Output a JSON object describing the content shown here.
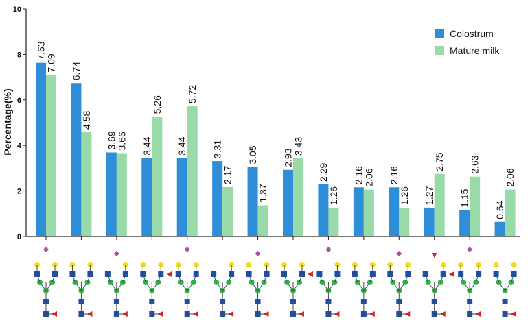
{
  "chart_data": {
    "type": "bar",
    "ylabel": "Percentage(%)",
    "ylim": [
      0,
      10
    ],
    "yticks": [
      "0",
      "2",
      "4",
      "6",
      "8",
      "10"
    ],
    "legend_position": "top-right",
    "series": [
      {
        "name": "Colostrum",
        "color": "#2e8fd8",
        "values": [
          7.63,
          6.74,
          3.69,
          3.44,
          3.44,
          3.31,
          3.05,
          2.93,
          2.29,
          2.16,
          2.16,
          1.27,
          1.15,
          0.64
        ],
        "labels": [
          "7.63",
          "6.74",
          "3.69",
          "3.44",
          "3.44",
          "3.31",
          "3.05",
          "2.93",
          "2.29",
          "2.16",
          "2.16",
          "1.27",
          "1.15",
          "0.64"
        ]
      },
      {
        "name": "Mature milk",
        "color": "#98dba9",
        "values": [
          7.09,
          4.58,
          3.66,
          5.26,
          5.72,
          2.17,
          1.37,
          3.43,
          1.26,
          2.06,
          1.26,
          2.75,
          2.63,
          2.06
        ],
        "labels": [
          "7.09",
          "4.58",
          "3.66",
          "5.26",
          "5.72",
          "2.17",
          "1.37",
          "3.43",
          "1.26",
          "2.06",
          "1.26",
          "2.75",
          "2.63",
          "2.06"
        ]
      }
    ],
    "categories": [
      "",
      "",
      "",
      "",
      "",
      "",
      "",
      "",
      "",
      "",
      "",
      "",
      "",
      ""
    ],
    "category_glyphs": "glycan structure symbols (blue squares, green circles, yellow circles, purple diamonds, red triangles)"
  }
}
